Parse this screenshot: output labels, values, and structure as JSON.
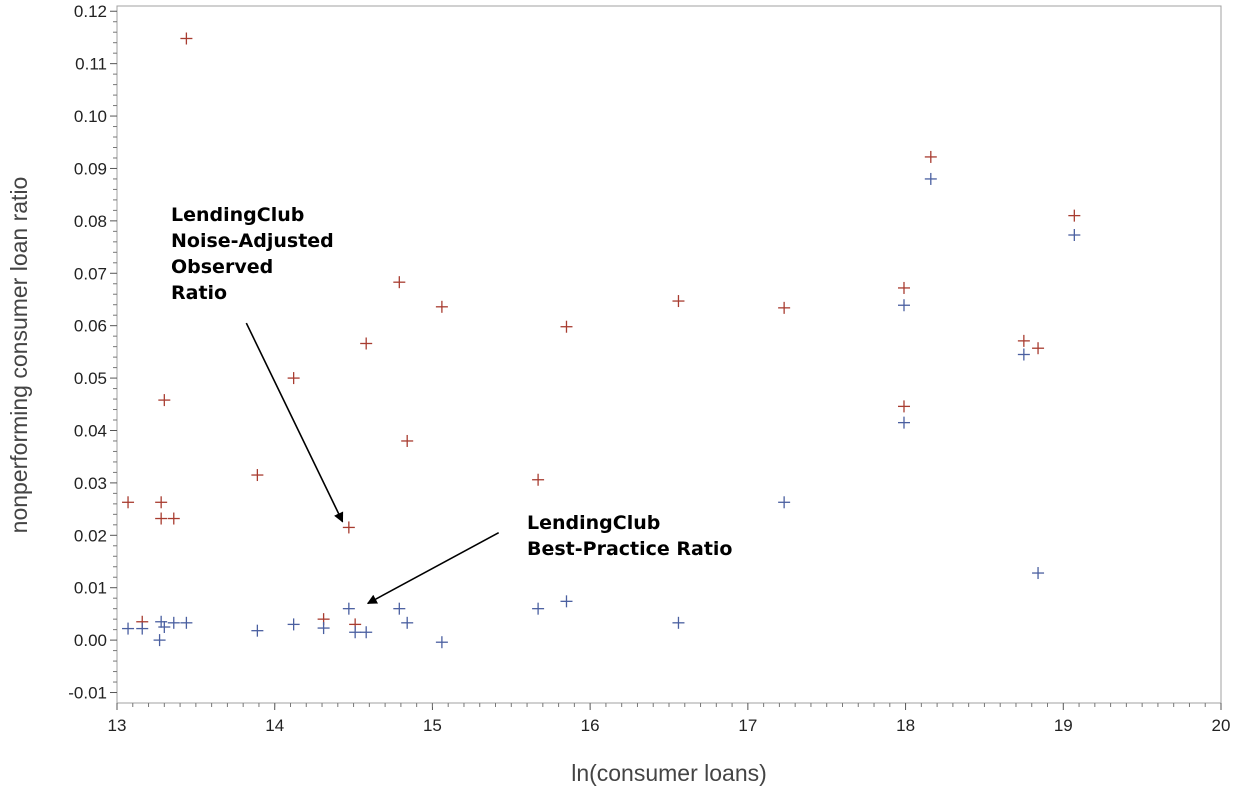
{
  "chart_data": {
    "type": "scatter",
    "title": "",
    "xlabel": "ln(consumer loans)",
    "ylabel": "nonperforming consumer loan ratio",
    "xlim": [
      13,
      20
    ],
    "ylim": [
      -0.012,
      0.121
    ],
    "xticks": [
      13,
      14,
      15,
      16,
      17,
      18,
      19,
      20
    ],
    "xtick_labels": [
      "13",
      "14",
      "15",
      "16",
      "17",
      "18",
      "19",
      "20"
    ],
    "yticks": [
      -0.01,
      0.0,
      0.01,
      0.02,
      0.03,
      0.04,
      0.05,
      0.06,
      0.07,
      0.08,
      0.09,
      0.1,
      0.11,
      0.12
    ],
    "ytick_labels": [
      "-0.01",
      "0.00",
      "0.01",
      "0.02",
      "0.03",
      "0.04",
      "0.05",
      "0.06",
      "0.07",
      "0.08",
      "0.09",
      "0.10",
      "0.11",
      "0.12"
    ],
    "marker": "plus",
    "grid": false,
    "series": [
      {
        "color": "#a83c30",
        "points": [
          [
            13.07,
            0.0263
          ],
          [
            13.16,
            0.0035
          ],
          [
            13.28,
            0.0263
          ],
          [
            13.28,
            0.0232
          ],
          [
            13.3,
            0.0458
          ],
          [
            13.36,
            0.0232
          ],
          [
            13.44,
            0.1148
          ],
          [
            13.89,
            0.0315
          ],
          [
            14.12,
            0.05
          ],
          [
            14.31,
            0.004
          ],
          [
            14.47,
            0.0215
          ],
          [
            14.51,
            0.003
          ],
          [
            14.58,
            0.0566
          ],
          [
            14.79,
            0.0683
          ],
          [
            14.84,
            0.038
          ],
          [
            15.06,
            0.0636
          ],
          [
            15.67,
            0.0306
          ],
          [
            15.85,
            0.0598
          ],
          [
            16.56,
            0.0647
          ],
          [
            17.23,
            0.0634
          ],
          [
            17.99,
            0.0672
          ],
          [
            17.99,
            0.0446
          ],
          [
            18.16,
            0.0922
          ],
          [
            18.75,
            0.0571
          ],
          [
            18.84,
            0.0557
          ],
          [
            19.07,
            0.081
          ]
        ]
      },
      {
        "color": "#4a5fa0",
        "points": [
          [
            13.07,
            0.0022
          ],
          [
            13.16,
            0.0022
          ],
          [
            13.27,
            0.0
          ],
          [
            13.28,
            0.0035
          ],
          [
            13.3,
            0.0025
          ],
          [
            13.36,
            0.0033
          ],
          [
            13.44,
            0.0033
          ],
          [
            13.89,
            0.0018
          ],
          [
            14.12,
            0.003
          ],
          [
            14.31,
            0.0023
          ],
          [
            14.47,
            0.006
          ],
          [
            14.51,
            0.0015
          ],
          [
            14.58,
            0.0015
          ],
          [
            14.79,
            0.006
          ],
          [
            14.84,
            0.0033
          ],
          [
            15.06,
            -0.0004
          ],
          [
            15.67,
            0.006
          ],
          [
            15.85,
            0.0074
          ],
          [
            16.56,
            0.0033
          ],
          [
            17.23,
            0.0263
          ],
          [
            17.99,
            0.0639
          ],
          [
            17.99,
            0.0415
          ],
          [
            18.16,
            0.088
          ],
          [
            18.75,
            0.0545
          ],
          [
            18.84,
            0.0128
          ],
          [
            19.07,
            0.0773
          ]
        ]
      }
    ],
    "annotations": [
      {
        "lines": [
          "LendingClub",
          "Noise-Adjusted",
          "Observed",
          "Ratio"
        ],
        "arrow_from": [
          13.82,
          0.0605
        ],
        "arrow_to": [
          14.43,
          0.0226
        ]
      },
      {
        "lines": [
          "LendingClub",
          "Best-Practice Ratio"
        ],
        "arrow_from": [
          15.42,
          0.0205
        ],
        "arrow_to": [
          14.59,
          0.007
        ]
      }
    ]
  }
}
